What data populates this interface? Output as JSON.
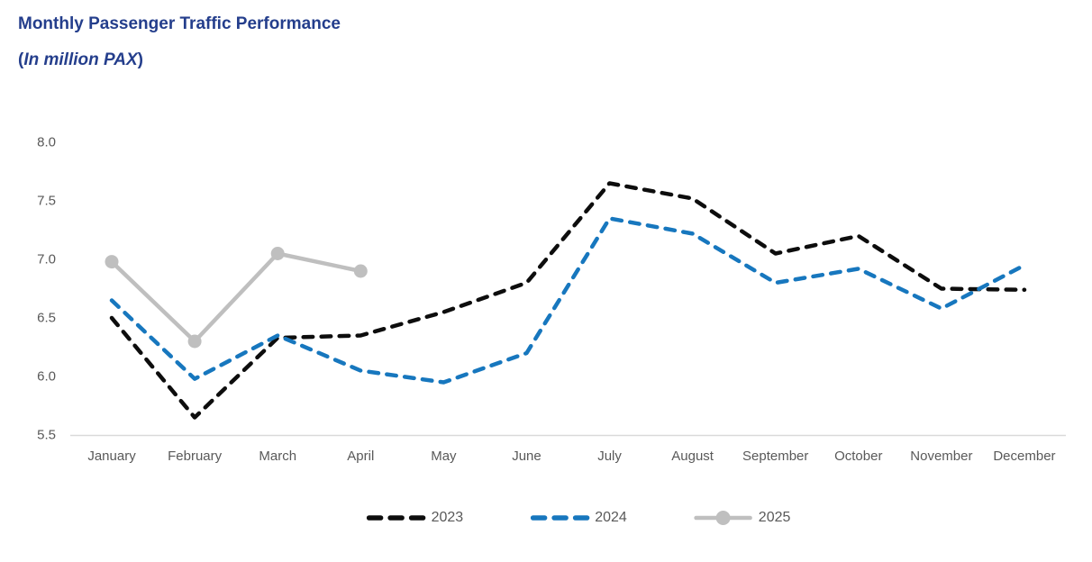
{
  "title": {
    "text": "Monthly Passenger Traffic Performance",
    "paren_open": "(",
    "italic": "In million PAX",
    "paren_close": ")",
    "color": "#243E8C"
  },
  "chart_data": {
    "type": "line",
    "title": "Monthly Passenger Traffic Performance (In million PAX)",
    "categories": [
      "January",
      "February",
      "March",
      "April",
      "May",
      "June",
      "July",
      "August",
      "September",
      "October",
      "November",
      "December"
    ],
    "series": [
      {
        "name": "2023",
        "color": "#0d0d0d",
        "style": "dashed",
        "marker": false,
        "values": [
          6.5,
          5.65,
          6.33,
          6.35,
          6.55,
          6.8,
          7.65,
          7.52,
          7.05,
          7.2,
          6.75,
          6.74
        ]
      },
      {
        "name": "2024",
        "color": "#1777BE",
        "style": "dashed",
        "marker": false,
        "values": [
          6.65,
          5.98,
          6.35,
          6.05,
          5.95,
          6.2,
          7.35,
          7.22,
          6.8,
          6.92,
          6.58,
          6.95
        ]
      },
      {
        "name": "2025",
        "color": "#BFBFBF",
        "style": "solid",
        "marker": true,
        "values": [
          6.98,
          6.3,
          7.05,
          6.9,
          null,
          null,
          null,
          null,
          null,
          null,
          null,
          null
        ]
      }
    ],
    "ylim": [
      5.5,
      8.0
    ],
    "ytick_step": 0.5,
    "yticks": [
      "5.5",
      "6.0",
      "6.5",
      "7.0",
      "7.5",
      "8.0"
    ],
    "xlabel": "",
    "ylabel": "",
    "grid": false,
    "legend_position": "bottom",
    "axis_line_color": "#D9D9D9",
    "tick_label_color": "#595959"
  }
}
